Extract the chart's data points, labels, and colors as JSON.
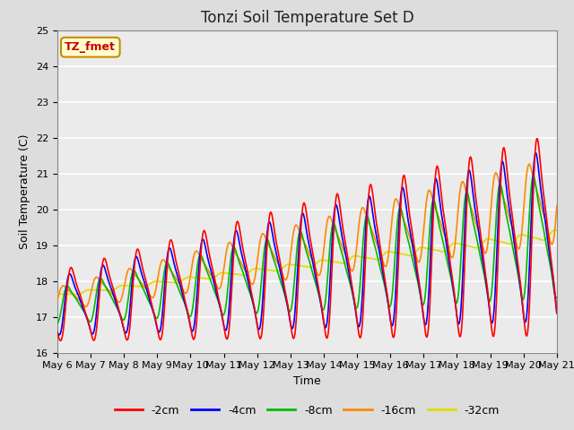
{
  "title": "Tonzi Soil Temperature Set D",
  "xlabel": "Time",
  "ylabel": "Soil Temperature (C)",
  "ylim": [
    16.0,
    25.0
  ],
  "yticks": [
    16.0,
    17.0,
    18.0,
    19.0,
    20.0,
    21.0,
    22.0,
    23.0,
    24.0,
    25.0
  ],
  "xtick_labels": [
    "May 6",
    "May 7",
    "May 8",
    "May 9",
    "May 10",
    "May 11",
    "May 12",
    "May 13",
    "May 14",
    "May 15",
    "May 16",
    "May 17",
    "May 18",
    "May 19",
    "May 20",
    "May 21"
  ],
  "series": {
    "-2cm": {
      "color": "#ff0000",
      "linewidth": 1.2
    },
    "-4cm": {
      "color": "#0000ff",
      "linewidth": 1.2
    },
    "-8cm": {
      "color": "#00bb00",
      "linewidth": 1.2
    },
    "-16cm": {
      "color": "#ff8800",
      "linewidth": 1.2
    },
    "-32cm": {
      "color": "#dddd00",
      "linewidth": 1.2
    }
  },
  "legend_label": "TZ_fmet",
  "legend_box_color": "#ffffcc",
  "legend_box_edge": "#cc8800",
  "background_color": "#dddddd",
  "plot_bg_color": "#ebebeb",
  "grid_color": "#ffffff",
  "n_points": 720
}
